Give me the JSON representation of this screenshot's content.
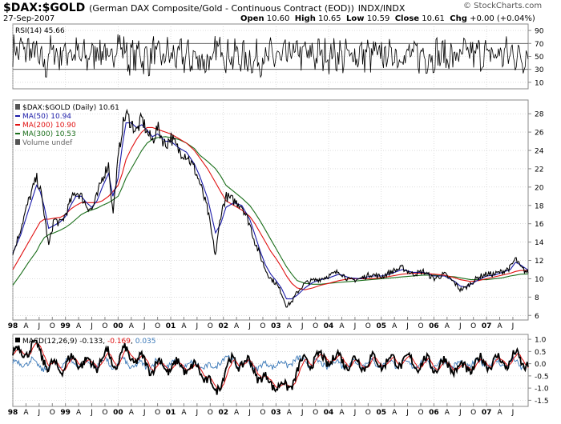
{
  "header": {
    "symbol": "$DAX:$GOLD",
    "description": "(German DAX Composite/Gold - Continuous Contract (EOD))",
    "exchange": "INDX/INDX",
    "date": "27-Sep-2007",
    "open_label": "Open",
    "open": "10.60",
    "high_label": "High",
    "high": "10.65",
    "low_label": "Low",
    "low": "10.59",
    "close_label": "Close",
    "close": "10.61",
    "chg_label": "Chg",
    "chg": "+0.00 (+0.04%)",
    "brand": "© StockCharts.com"
  },
  "colors": {
    "price": "#000000",
    "ma50": "#1a1aa8",
    "ma200": "#e01010",
    "ma300": "#1a6e1a",
    "rsi": "#000000",
    "macd": "#000000",
    "signal": "#e01010",
    "histogram": "#3a78b8",
    "grid": "#c8c8c8"
  },
  "time_axis": {
    "start_year": 1998,
    "end_year": 2007.79,
    "labels": [
      "98",
      "A",
      "J",
      "O",
      "99",
      "A",
      "J",
      "O",
      "00",
      "A",
      "J",
      "O",
      "01",
      "A",
      "J",
      "O",
      "02",
      "A",
      "J",
      "O",
      "03",
      "A",
      "J",
      "O",
      "04",
      "A",
      "J",
      "O",
      "05",
      "A",
      "J",
      "O",
      "06",
      "A",
      "J",
      "O",
      "07",
      "A",
      "J"
    ]
  },
  "chart_data": [
    {
      "type": "line",
      "panel": "rsi",
      "legend": "RSI(14) 45.66",
      "ylim": [
        0,
        100
      ],
      "yticks": [
        10,
        30,
        50,
        70,
        90
      ],
      "guide_levels": [
        30,
        70
      ],
      "last_value": 45.66
    },
    {
      "type": "line",
      "panel": "price",
      "title": "$DAX:$GOLD (German DAX Composite/Gold - Continuous Contract (EOD)) INDX/INDX",
      "legend": [
        {
          "name": "$DAX:$GOLD (Daily) 10.61",
          "key": "price"
        },
        {
          "name": "MA(50) 10.94",
          "key": "ma50"
        },
        {
          "name": "MA(200) 10.90",
          "key": "ma200"
        },
        {
          "name": "MA(300) 10.53",
          "key": "ma300"
        },
        {
          "name": "Volume undef",
          "key": "volume"
        }
      ],
      "ylim": [
        5.5,
        29.5
      ],
      "yticks": [
        6,
        8,
        10,
        12,
        14,
        16,
        18,
        20,
        22,
        24,
        26,
        28
      ],
      "x": [
        1998.0,
        1998.15,
        1998.3,
        1998.45,
        1998.52,
        1998.6,
        1998.68,
        1998.78,
        1998.9,
        1999.0,
        1999.1,
        1999.2,
        1999.3,
        1999.4,
        1999.5,
        1999.6,
        1999.7,
        1999.82,
        1999.9,
        2000.0,
        2000.08,
        2000.15,
        2000.25,
        2000.35,
        2000.45,
        2000.55,
        2000.65,
        2000.75,
        2000.9,
        2001.0,
        2001.15,
        2001.3,
        2001.45,
        2001.55,
        2001.7,
        2001.85,
        2001.95,
        2002.05,
        2002.2,
        2002.35,
        2002.5,
        2002.6,
        2002.7,
        2002.8,
        2002.9,
        2003.0,
        2003.1,
        2003.2,
        2003.3,
        2003.4,
        2003.55,
        2003.7,
        2003.85,
        2004.0,
        2004.2,
        2004.4,
        2004.6,
        2004.8,
        2005.0,
        2005.2,
        2005.4,
        2005.6,
        2005.8,
        2006.0,
        2006.2,
        2006.4,
        2006.5,
        2006.6,
        2006.7,
        2006.85,
        2007.0,
        2007.15,
        2007.3,
        2007.45,
        2007.55,
        2007.65,
        2007.79
      ],
      "series": [
        {
          "name": "$DAX:$GOLD",
          "key": "price",
          "values": [
            12.6,
            15.5,
            18.5,
            21.0,
            19.8,
            17.0,
            13.5,
            16.5,
            16.0,
            17.0,
            18.5,
            19.5,
            19.0,
            18.0,
            17.5,
            19.0,
            21.0,
            22.5,
            17.0,
            23.0,
            26.5,
            28.0,
            27.0,
            26.0,
            27.5,
            26.0,
            25.0,
            26.5,
            24.5,
            25.5,
            24.0,
            23.5,
            22.0,
            20.5,
            17.5,
            12.5,
            17.0,
            19.0,
            18.5,
            18.0,
            16.0,
            14.0,
            12.5,
            11.0,
            10.0,
            9.5,
            8.5,
            7.0,
            7.5,
            8.5,
            9.5,
            9.8,
            10.0,
            10.3,
            10.8,
            9.8,
            10.0,
            10.5,
            10.2,
            10.8,
            11.2,
            10.5,
            10.8,
            10.0,
            10.5,
            9.5,
            8.8,
            9.0,
            9.5,
            10.2,
            10.5,
            10.5,
            10.8,
            11.2,
            12.2,
            11.2,
            10.61
          ]
        },
        {
          "name": "MA(50)",
          "key": "ma50",
          "values": [
            12.8,
            14.8,
            17.5,
            20.2,
            19.5,
            17.8,
            15.5,
            15.8,
            16.2,
            16.8,
            18.0,
            19.0,
            19.0,
            18.3,
            17.8,
            18.5,
            20.0,
            21.5,
            19.0,
            21.0,
            24.5,
            27.0,
            27.0,
            26.5,
            26.8,
            26.2,
            25.5,
            25.8,
            25.0,
            25.0,
            24.3,
            23.8,
            22.5,
            21.2,
            18.8,
            15.0,
            16.0,
            17.8,
            18.3,
            18.0,
            16.5,
            14.8,
            13.0,
            11.5,
            10.5,
            9.8,
            9.0,
            7.8,
            7.8,
            8.2,
            9.0,
            9.6,
            9.9,
            10.1,
            10.5,
            10.1,
            10.0,
            10.3,
            10.3,
            10.6,
            11.0,
            10.7,
            10.7,
            10.3,
            10.3,
            9.7,
            9.2,
            9.1,
            9.4,
            9.9,
            10.3,
            10.4,
            10.7,
            11.0,
            11.8,
            11.5,
            10.94
          ]
        },
        {
          "name": "MA(200)",
          "key": "ma200",
          "values": [
            11.0,
            12.5,
            14.0,
            15.5,
            16.2,
            16.5,
            16.5,
            16.6,
            16.7,
            17.0,
            17.6,
            18.0,
            18.3,
            18.3,
            18.3,
            18.3,
            18.5,
            19.0,
            19.5,
            20.2,
            21.5,
            23.0,
            24.2,
            25.2,
            26.0,
            26.5,
            26.5,
            26.3,
            26.0,
            25.8,
            25.3,
            24.8,
            24.0,
            23.2,
            22.0,
            20.5,
            19.5,
            18.5,
            18.0,
            17.5,
            16.8,
            16.0,
            15.0,
            14.0,
            13.0,
            12.2,
            11.3,
            10.3,
            9.5,
            9.0,
            8.8,
            9.0,
            9.3,
            9.5,
            9.8,
            10.0,
            10.0,
            10.0,
            10.1,
            10.3,
            10.5,
            10.6,
            10.6,
            10.5,
            10.4,
            10.1,
            9.9,
            9.8,
            9.7,
            9.8,
            10.0,
            10.2,
            10.4,
            10.6,
            10.8,
            10.9,
            10.9
          ]
        },
        {
          "name": "MA(300)",
          "key": "ma300",
          "values": [
            9.3,
            10.5,
            11.8,
            13.0,
            13.8,
            14.5,
            14.8,
            15.0,
            15.3,
            15.6,
            16.0,
            16.5,
            17.0,
            17.3,
            17.5,
            17.7,
            18.0,
            18.3,
            18.6,
            19.0,
            20.0,
            21.0,
            22.0,
            23.0,
            24.0,
            24.8,
            25.2,
            25.4,
            25.5,
            25.4,
            25.2,
            24.8,
            24.2,
            23.5,
            22.8,
            22.0,
            21.2,
            20.2,
            19.5,
            18.8,
            18.0,
            17.2,
            16.3,
            15.3,
            14.3,
            13.3,
            12.3,
            11.3,
            10.5,
            9.8,
            9.5,
            9.4,
            9.4,
            9.5,
            9.6,
            9.7,
            9.8,
            9.9,
            10.0,
            10.1,
            10.2,
            10.3,
            10.4,
            10.4,
            10.3,
            10.2,
            10.1,
            10.0,
            9.9,
            9.9,
            9.9,
            10.0,
            10.1,
            10.3,
            10.4,
            10.5,
            10.53
          ]
        }
      ]
    },
    {
      "type": "line",
      "panel": "macd",
      "legend": [
        {
          "name": "MACD(12,26,9)",
          "value": "-0.133",
          "key": "macd"
        },
        {
          "name": "",
          "value": "-0.169",
          "key": "signal"
        },
        {
          "name": "",
          "value": "0.035",
          "key": "histogram"
        }
      ],
      "ylim": [
        -1.75,
        1.2
      ],
      "yticks": [
        1.0,
        0.5,
        0.0,
        -0.5,
        -1.0,
        -1.5
      ],
      "ytick_labels": [
        "1.0",
        "0.5",
        "0.0",
        "-0.5",
        "-1.0",
        "-1.5"
      ],
      "last_values": {
        "macd": -0.133,
        "signal": -0.169,
        "histogram": 0.035
      }
    }
  ]
}
